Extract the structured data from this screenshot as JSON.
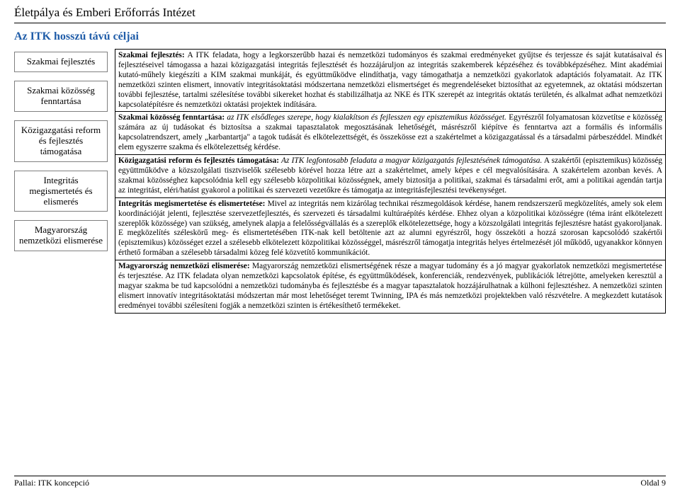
{
  "header": {
    "title": "Életpálya és Emberi Erőforrás Intézet"
  },
  "subtitle": "Az ITK hosszú távú céljai",
  "sidebar": {
    "items": [
      {
        "label": "Szakmai fejlesztés"
      },
      {
        "label": "Szakmai közösség fenntartása"
      },
      {
        "label": "Közigazgatási reform és fejlesztés támogatása"
      },
      {
        "label": "Integritás megismertetés és elismerés"
      },
      {
        "label": "Magyarország nemzetközi elismerése"
      }
    ]
  },
  "sections": [
    {
      "lead": "Szakmai fejlesztés:",
      "body": " A ITK feladata, hogy a legkorszerűbb hazai és nemzetközi tudományos és szakmai eredményeket gyűjtse és terjessze és saját kutatásaival és fejlesztéseivel támogassa a hazai közigazgatási integritás fejlesztését és hozzájáruljon az integritás szakemberek képzéséhez és továbbképzéséhez. Mint akadémiai kutató-műhely kiegészíti a KIM szakmai munkáját, és együttműködve elindíthatja, vagy támogathatja a nemzetközi gyakorlatok adaptációs folyamatait. Az ITK nemzetközi szinten elismert, innovatív integritásoktatási módszertana nemzetközi elismertséget és megrendeléseket biztosíthat az egyetemnek, az oktatási módszertan további fejlesztése, tartalmi szélesítése további sikereket hozhat és stabilizálhatja az NKE és ITK szerepét az integritás oktatás területén, és alkalmat adhat nemzetközi kapcsolatépítésre és nemzetközi oktatási projektek indítására."
    },
    {
      "lead": "Szakmai közösség fenntartása:",
      "italic": " az ITK elsődleges szerepe, hogy kialakítson és fejlesszen egy episztemikus közösséget.",
      "body": " Egyrészről folyamatosan közvetítse e közösség számára az új tudásokat és biztosítsa a szakmai tapasztalatok megosztásának lehetőségét, másrészről kiépítve és fenntartva azt a formális és informális kapcsolatrendszert, amely „karbantartja\" a tagok tudását és elkötelezettségét, és összekösse ezt a szakértelmet a közigazgatással és a társadalmi párbeszéddel. Mindkét elem egyszerre szakma és elkötelezettség kérdése."
    },
    {
      "lead": "Közigazgatási reform és fejlesztés támogatása:",
      "italic": " Az ITK legfontosabb feladata a magyar közigazgatás fejlesztésének támogatása.",
      "body": " A szakértői (episztemikus) közösség együttműködve a közszolgálati tisztviselők szélesebb körével hozza létre azt a szakértelmet, amely képes e cél megvalósítására. A szakértelem azonban kevés. A szakmai közösséghez kapcsolódnia kell egy szélesebb közpolitikai közösségnek, amely biztosítja a politikai, szakmai és társadalmi erőt, ami a politikai agendán tartja az integritást, eléri/hatást gyakorol a politikai és szervezeti vezetőkre és támogatja az integritásfejlesztési tevékenységet."
    },
    {
      "lead": "Integritás megismertetése és elismertetése:",
      "body": " Mivel az integritás nem kizárólag technikai részmegoldások kérdése, hanem rendszerszerű megközelítés, amely sok elem koordinációját jelenti, fejlesztése szervezetfejlesztés, és szervezeti és társadalmi kultúraépítés kérdése. Ehhez olyan a közpolitikai közösségre (téma iránt elkötelezett szereplők közössége) van szükség, amelynek alapja a felelősségvállalás és a szereplők elkötelezettsége, hogy a közszolgálati integritás fejlesztésre hatást gyakoroljanak. E megközelítés széleskörű meg- és elismertetésében ITK-nak kell betöltenie azt az alumni egyrészről, hogy összeköti a hozzá szorosan kapcsolódó szakértői (episztemikus) közösséget ezzel a szélesebb elkötelezett közpolitikai közösséggel, másrészről támogatja integritás helyes értelmezését jól működő, ugyanakkor könnyen érthető formában a szélesebb társadalmi közeg felé közvetítő kommunikációt."
    },
    {
      "lead": "Magyarország nemzetközi elismerése:",
      "body": " Magyarország nemzetközi elismertségének része a magyar tudomány és a jó magyar gyakorlatok nemzetközi megismertetése és terjesztése. Az ITK feladata olyan nemzetközi kapcsolatok építése, és együttműködések, konferenciák, rendezvények, publikációk létrejötte, amelyeken keresztül a magyar szakma be tud kapcsolódni a nemzetközi tudományba és fejlesztésbe és a magyar tapasztalatok hozzájárulhatnak a külhoni fejlesztéshez. A nemzetközi szinten elismert innovatív integritásoktatási módszertan már most lehetőséget teremt Twinning, IPA és más nemzetközi projektekben való részvételre. A megkezdett kutatások eredményei további szélesíteni fogják a nemzetközi szinten is értékesíthető termékeket."
    }
  ],
  "footer": {
    "left": "Pallai: ITK koncepció",
    "right": "Oldal 9"
  }
}
